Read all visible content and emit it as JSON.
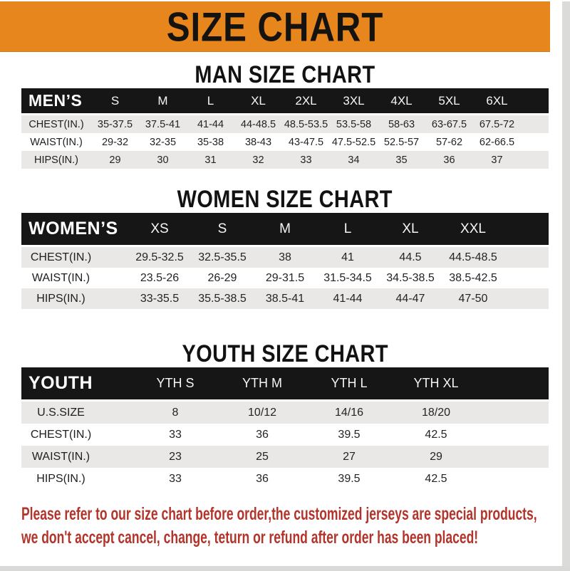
{
  "banner": {
    "title": "SIZE CHART"
  },
  "colors": {
    "banner_orange": "#E8861E",
    "header_black": "#161616",
    "row_gray": "#E9E8E6",
    "disclaimer_red": "#B2342B"
  },
  "sections": {
    "men": {
      "title": "MAN SIZE CHART",
      "table": {
        "label": "MEN’S",
        "columns": [
          "S",
          "M",
          "L",
          "XL",
          "2XL",
          "3XL",
          "4XL",
          "5XL",
          "6XL"
        ],
        "rows": [
          {
            "label": "CHEST(IN.)",
            "values": [
              "35-37.5",
              "37.5-41",
              "41-44",
              "44-48.5",
              "48.5-53.5",
              "53.5-58",
              "58-63",
              "63-67.5",
              "67.5-72"
            ]
          },
          {
            "label": "WAIST(IN.)",
            "values": [
              "29-32",
              "32-35",
              "35-38",
              "38-43",
              "43-47.5",
              "47.5-52.5",
              "52.5-57",
              "57-62",
              "62-66.5"
            ]
          },
          {
            "label": "HIPS(IN.)",
            "values": [
              "29",
              "30",
              "31",
              "32",
              "33",
              "34",
              "35",
              "36",
              "37"
            ]
          }
        ]
      }
    },
    "women": {
      "title": "WOMEN SIZE CHART",
      "table": {
        "label": "WOMEN’S",
        "columns": [
          "XS",
          "S",
          "M",
          "L",
          "XL",
          "XXL"
        ],
        "rows": [
          {
            "label": "CHEST(IN.)",
            "values": [
              "29.5-32.5",
              "32.5-35.5",
              "38",
              "41",
              "44.5",
              "44.5-48.5"
            ]
          },
          {
            "label": "WAIST(IN.)",
            "values": [
              "23.5-26",
              "26-29",
              "29-31.5",
              "31.5-34.5",
              "34.5-38.5",
              "38.5-42.5"
            ]
          },
          {
            "label": "HIPS(IN.)",
            "values": [
              "33-35.5",
              "35.5-38.5",
              "38.5-41",
              "41-44",
              "44-47",
              "47-50"
            ]
          }
        ]
      }
    },
    "youth": {
      "title": "YOUTH SIZE CHART",
      "table": {
        "label": "YOUTH",
        "columns": [
          "YTH S",
          "YTH M",
          "YTH L",
          "YTH XL"
        ],
        "rows": [
          {
            "label": "U.S.SIZE",
            "values": [
              "8",
              "10/12",
              "14/16",
              "18/20"
            ]
          },
          {
            "label": "CHEST(IN.)",
            "values": [
              "33",
              "36",
              "39.5",
              "42.5"
            ]
          },
          {
            "label": "WAIST(IN.)",
            "values": [
              "23",
              "25",
              "27",
              "29"
            ]
          },
          {
            "label": "HIPS(IN.)",
            "values": [
              "33",
              "36",
              "39.5",
              "42.5"
            ]
          }
        ]
      }
    }
  },
  "disclaimer": {
    "line1": "Please refer to our size chart before order,the customized jerseys are special products,",
    "line2": "we don't accept cancel, change, teturn or refund after order has been placed!"
  }
}
